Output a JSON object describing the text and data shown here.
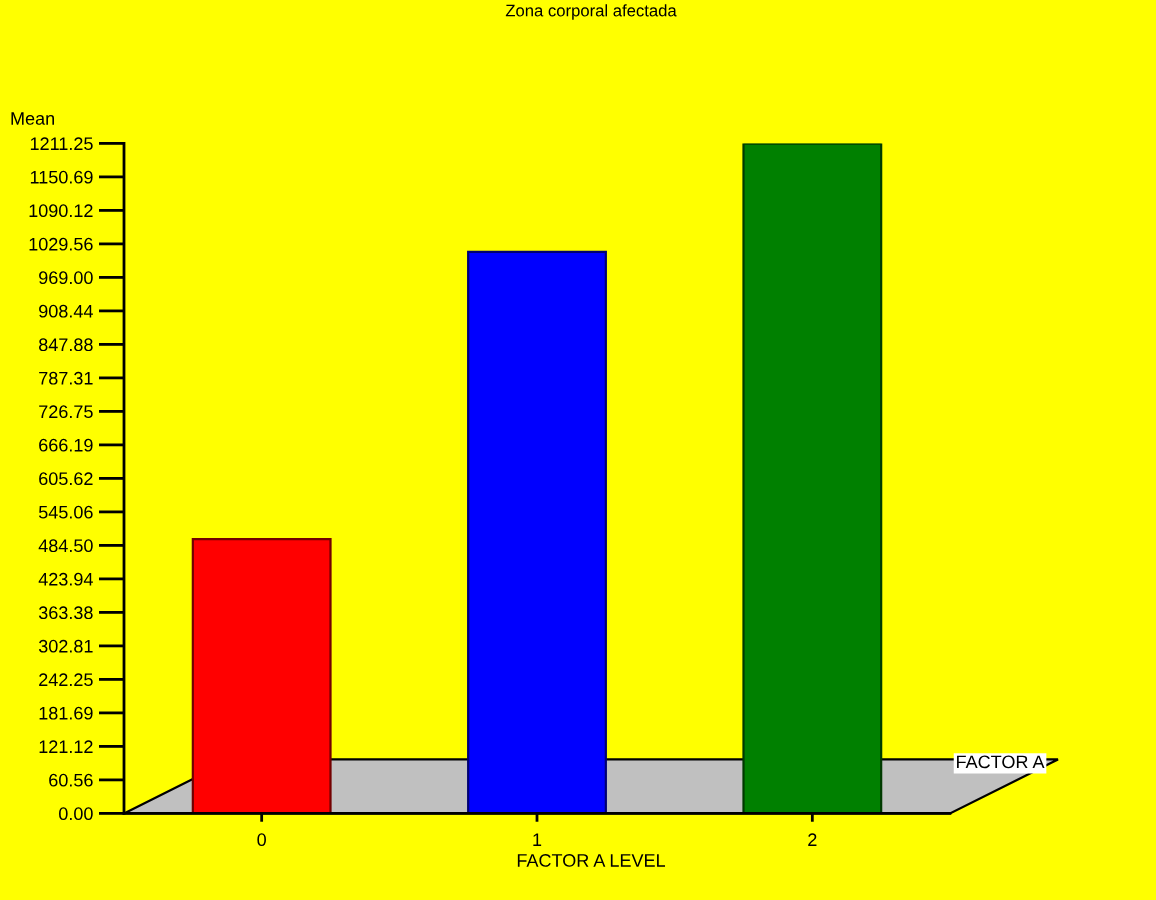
{
  "chart_data": {
    "type": "bar",
    "title": "Zona corporal afectada",
    "xlabel": "FACTOR A LEVEL",
    "ylabel": "Mean",
    "categories": [
      "0",
      "1",
      "2"
    ],
    "values": [
      496,
      1015,
      1211
    ],
    "colors": [
      "#ff0000",
      "#0000ff",
      "#008000"
    ],
    "ylim": [
      0,
      1211.25
    ],
    "yticks": [
      {
        "value": 0,
        "label": "0.00"
      },
      60.56,
      121.12,
      181.69,
      242.25,
      302.81,
      363.38,
      423.94,
      {
        "value": 484.5,
        "label": "484.50"
      },
      545.06,
      605.62,
      666.19,
      726.75,
      787.31,
      847.88,
      908.44,
      {
        "value": 969,
        "label": "969.00"
      },
      1029.56,
      1090.12,
      1150.69,
      1211.25
    ],
    "annotations": [
      "FACTOR A"
    ]
  }
}
